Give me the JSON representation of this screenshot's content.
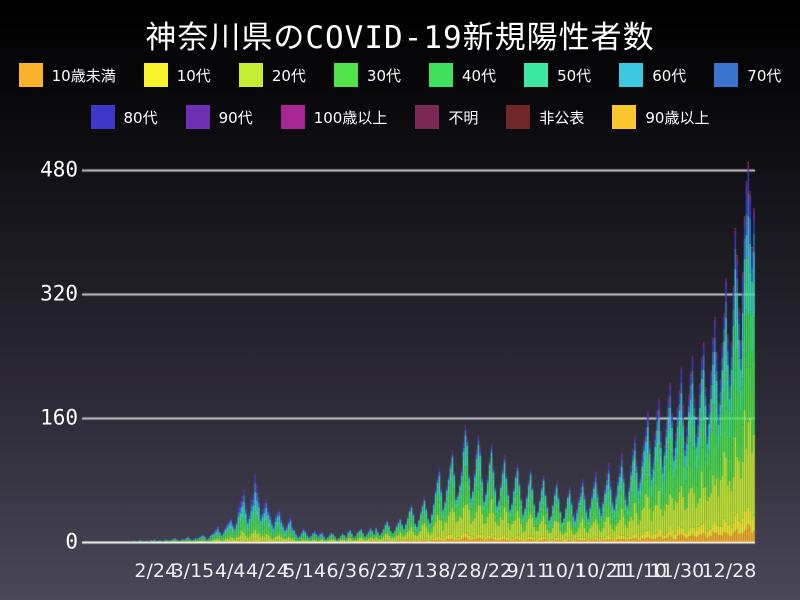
{
  "title": "神奈川県のCOVID-19新規陽性者数",
  "colors": {
    "background_top": "#000000",
    "background_bottom": "#4a4757",
    "gridline": "#c9c9ce",
    "zero_line": "#ffffff",
    "text": "#ffffff"
  },
  "chart_data": {
    "type": "bar",
    "stacked": true,
    "title": "神奈川県のCOVID-19新規陽性者数",
    "xlabel": "",
    "ylabel": "",
    "grid": true,
    "legend_position": "top",
    "y_ticks": [
      0,
      160,
      320,
      480
    ],
    "ylim": [
      0,
      500
    ],
    "x_tick_labels": [
      "2/24",
      "3/15",
      "4/4",
      "4/24",
      "5/14",
      "6/3",
      "6/23",
      "7/13",
      "8/2",
      "8/22",
      "9/11",
      "10/1",
      "10/21",
      "11/10",
      "11/30",
      "12/28"
    ],
    "x_tick_day_indices": [
      38,
      58,
      78,
      98,
      118,
      138,
      158,
      178,
      198,
      218,
      238,
      258,
      278,
      298,
      318,
      346
    ],
    "days_total": 360,
    "legend": [
      {
        "label": "10歳未満",
        "color": "#FBB32B",
        "share": 0.035
      },
      {
        "label": "10代",
        "color": "#F8F32B",
        "share": 0.05
      },
      {
        "label": "20代",
        "color": "#C6EF33",
        "share": 0.23
      },
      {
        "label": "30代",
        "color": "#52E24C",
        "share": 0.17
      },
      {
        "label": "40代",
        "color": "#3EE05C",
        "share": 0.15
      },
      {
        "label": "50代",
        "color": "#3CE6A3",
        "share": 0.125
      },
      {
        "label": "60代",
        "color": "#3BC8E0",
        "share": 0.085
      },
      {
        "label": "70代",
        "color": "#3A74CE",
        "share": 0.06
      },
      {
        "label": "80代",
        "color": "#3C38C8",
        "share": 0.042
      },
      {
        "label": "90代",
        "color": "#6E2FB2",
        "share": 0.018
      },
      {
        "label": "100歳以上",
        "color": "#A82693",
        "share": 0.004
      },
      {
        "label": "不明",
        "color": "#7C2A55",
        "share": 0.005
      },
      {
        "label": "非公表",
        "color": "#6F2727",
        "share": 0.003
      },
      {
        "label": "90歳以上",
        "color": "#FCC62E",
        "share": 0.001
      }
    ],
    "daily_totals": [
      1,
      0,
      0,
      0,
      0,
      0,
      1,
      0,
      0,
      0,
      0,
      1,
      0,
      0,
      0,
      0,
      0,
      0,
      0,
      1,
      0,
      0,
      0,
      0,
      1,
      1,
      2,
      0,
      1,
      3,
      2,
      1,
      0,
      2,
      1,
      3,
      2,
      4,
      1,
      2,
      3,
      1,
      2,
      4,
      3,
      2,
      3,
      5,
      6,
      4,
      2,
      3,
      5,
      4,
      6,
      8,
      5,
      3,
      4,
      6,
      5,
      7,
      9,
      11,
      8,
      4,
      6,
      9,
      12,
      14,
      18,
      22,
      15,
      10,
      14,
      20,
      24,
      28,
      32,
      25,
      20,
      28,
      45,
      52,
      60,
      68,
      48,
      30,
      38,
      55,
      62,
      87,
      74,
      58,
      35,
      42,
      50,
      56,
      45,
      38,
      28,
      22,
      35,
      40,
      44,
      33,
      25,
      18,
      22,
      30,
      34,
      22,
      18,
      12,
      8,
      10,
      14,
      19,
      16,
      11,
      7,
      9,
      13,
      16,
      12,
      9,
      12,
      14,
      9,
      5,
      7,
      10,
      13,
      11,
      8,
      4,
      6,
      9,
      12,
      10,
      7,
      14,
      17,
      12,
      7,
      9,
      13,
      16,
      18,
      13,
      8,
      11,
      15,
      19,
      16,
      11,
      20,
      14,
      10,
      13,
      18,
      24,
      28,
      22,
      15,
      12,
      16,
      22,
      27,
      31,
      24,
      18,
      25,
      34,
      42,
      48,
      38,
      25,
      21,
      30,
      41,
      50,
      58,
      45,
      32,
      26,
      38,
      52,
      68,
      83,
      95,
      70,
      45,
      55,
      72,
      88,
      105,
      118,
      92,
      58,
      65,
      78,
      95,
      128,
      150,
      135,
      88,
      60,
      70,
      92,
      119,
      138,
      122,
      85,
      55,
      68,
      85,
      108,
      126,
      98,
      72,
      50,
      58,
      76,
      95,
      112,
      89,
      66,
      44,
      52,
      70,
      88,
      101,
      79,
      58,
      38,
      46,
      62,
      80,
      94,
      73,
      52,
      34,
      41,
      57,
      74,
      86,
      65,
      48,
      30,
      36,
      50,
      66,
      78,
      60,
      42,
      28,
      33,
      46,
      61,
      72,
      55,
      38,
      31,
      44,
      58,
      70,
      82,
      63,
      45,
      35,
      49,
      64,
      77,
      90,
      68,
      50,
      41,
      56,
      73,
      88,
      102,
      78,
      57,
      47,
      65,
      84,
      98,
      115,
      88,
      64,
      52,
      75,
      98,
      120,
      137,
      105,
      76,
      88,
      114,
      133,
      147,
      168,
      130,
      95,
      110,
      142,
      170,
      185,
      143,
      105,
      125,
      155,
      186,
      205,
      166,
      121,
      140,
      174,
      195,
      226,
      176,
      130,
      150,
      190,
      219,
      240,
      185,
      140,
      163,
      205,
      238,
      258,
      200,
      150,
      178,
      221,
      264,
      290,
      245,
      180,
      210,
      256,
      295,
      340,
      268,
      215,
      258,
      330,
      405,
      370,
      300,
      260,
      348,
      420,
      465,
      490,
      452,
      380,
      430
    ]
  }
}
